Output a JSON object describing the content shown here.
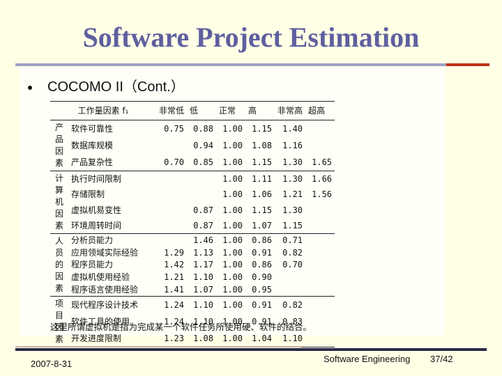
{
  "slide": {
    "title": "Software Project Estimation",
    "bullet": "COCOMO II（Cont.）",
    "note": "这里所谓虚拟机是指为完成某一个软件任务所使用硬、软件的结合。",
    "footer_date": "2007-8-31",
    "footer_course": "Software Engineering",
    "footer_page": "37/42"
  },
  "table": {
    "headers": [
      "工作量因素 f₁",
      "非常低",
      "低",
      "正常",
      "高",
      "非常高",
      "超高"
    ],
    "groups": [
      {
        "category": "产品因素",
        "rows": [
          {
            "factor": "软件可靠性",
            "v": [
              "0.75",
              "0.88",
              "1.00",
              "1.15",
              "1.40",
              ""
            ]
          },
          {
            "factor": "数据库规模",
            "v": [
              "",
              "0.94",
              "1.00",
              "1.08",
              "1.16",
              ""
            ]
          },
          {
            "factor": "产品复杂性",
            "v": [
              "0.70",
              "0.85",
              "1.00",
              "1.15",
              "1.30",
              "1.65"
            ]
          }
        ]
      },
      {
        "category": "计算机因素",
        "rows": [
          {
            "factor": "执行时间限制",
            "v": [
              "",
              "",
              "1.00",
              "1.11",
              "1.30",
              "1.66"
            ]
          },
          {
            "factor": "存储限制",
            "v": [
              "",
              "",
              "1.00",
              "1.06",
              "1.21",
              "1.56"
            ]
          },
          {
            "factor": "虚拟机易变性",
            "v": [
              "",
              "0.87",
              "1.00",
              "1.15",
              "1.30",
              ""
            ]
          },
          {
            "factor": "环境周转时间",
            "v": [
              "",
              "0.87",
              "1.00",
              "1.07",
              "1.15",
              ""
            ]
          }
        ]
      },
      {
        "category": "人员的因素",
        "rows": [
          {
            "factor": "分析员能力",
            "v": [
              "",
              "1.46",
              "1.00",
              "0.86",
              "0.71",
              ""
            ]
          },
          {
            "factor": "应用领域实际经验",
            "v": [
              "1.29",
              "1.13",
              "1.00",
              "0.91",
              "0.82",
              ""
            ]
          },
          {
            "factor": "程序员能力",
            "v": [
              "1.42",
              "1.17",
              "1.00",
              "0.86",
              "0.70",
              ""
            ]
          },
          {
            "factor": "虚拟机使用经验",
            "v": [
              "1.21",
              "1.10",
              "1.00",
              "0.90",
              "",
              ""
            ]
          },
          {
            "factor": "程序语言使用经验",
            "v": [
              "1.41",
              "1.07",
              "1.00",
              "0.95",
              "",
              ""
            ]
          }
        ]
      },
      {
        "category": "项目因素",
        "rows": [
          {
            "factor": "现代程序设计技术",
            "v": [
              "1.24",
              "1.10",
              "1.00",
              "0.91",
              "0.82",
              ""
            ]
          },
          {
            "factor": "软件工具的使用",
            "v": [
              "1.24",
              "1.10",
              "1.00",
              "0.91",
              "0.83",
              ""
            ]
          },
          {
            "factor": "开发进度限制",
            "v": [
              "1.23",
              "1.08",
              "1.00",
              "1.04",
              "1.10",
              ""
            ]
          }
        ]
      }
    ]
  }
}
